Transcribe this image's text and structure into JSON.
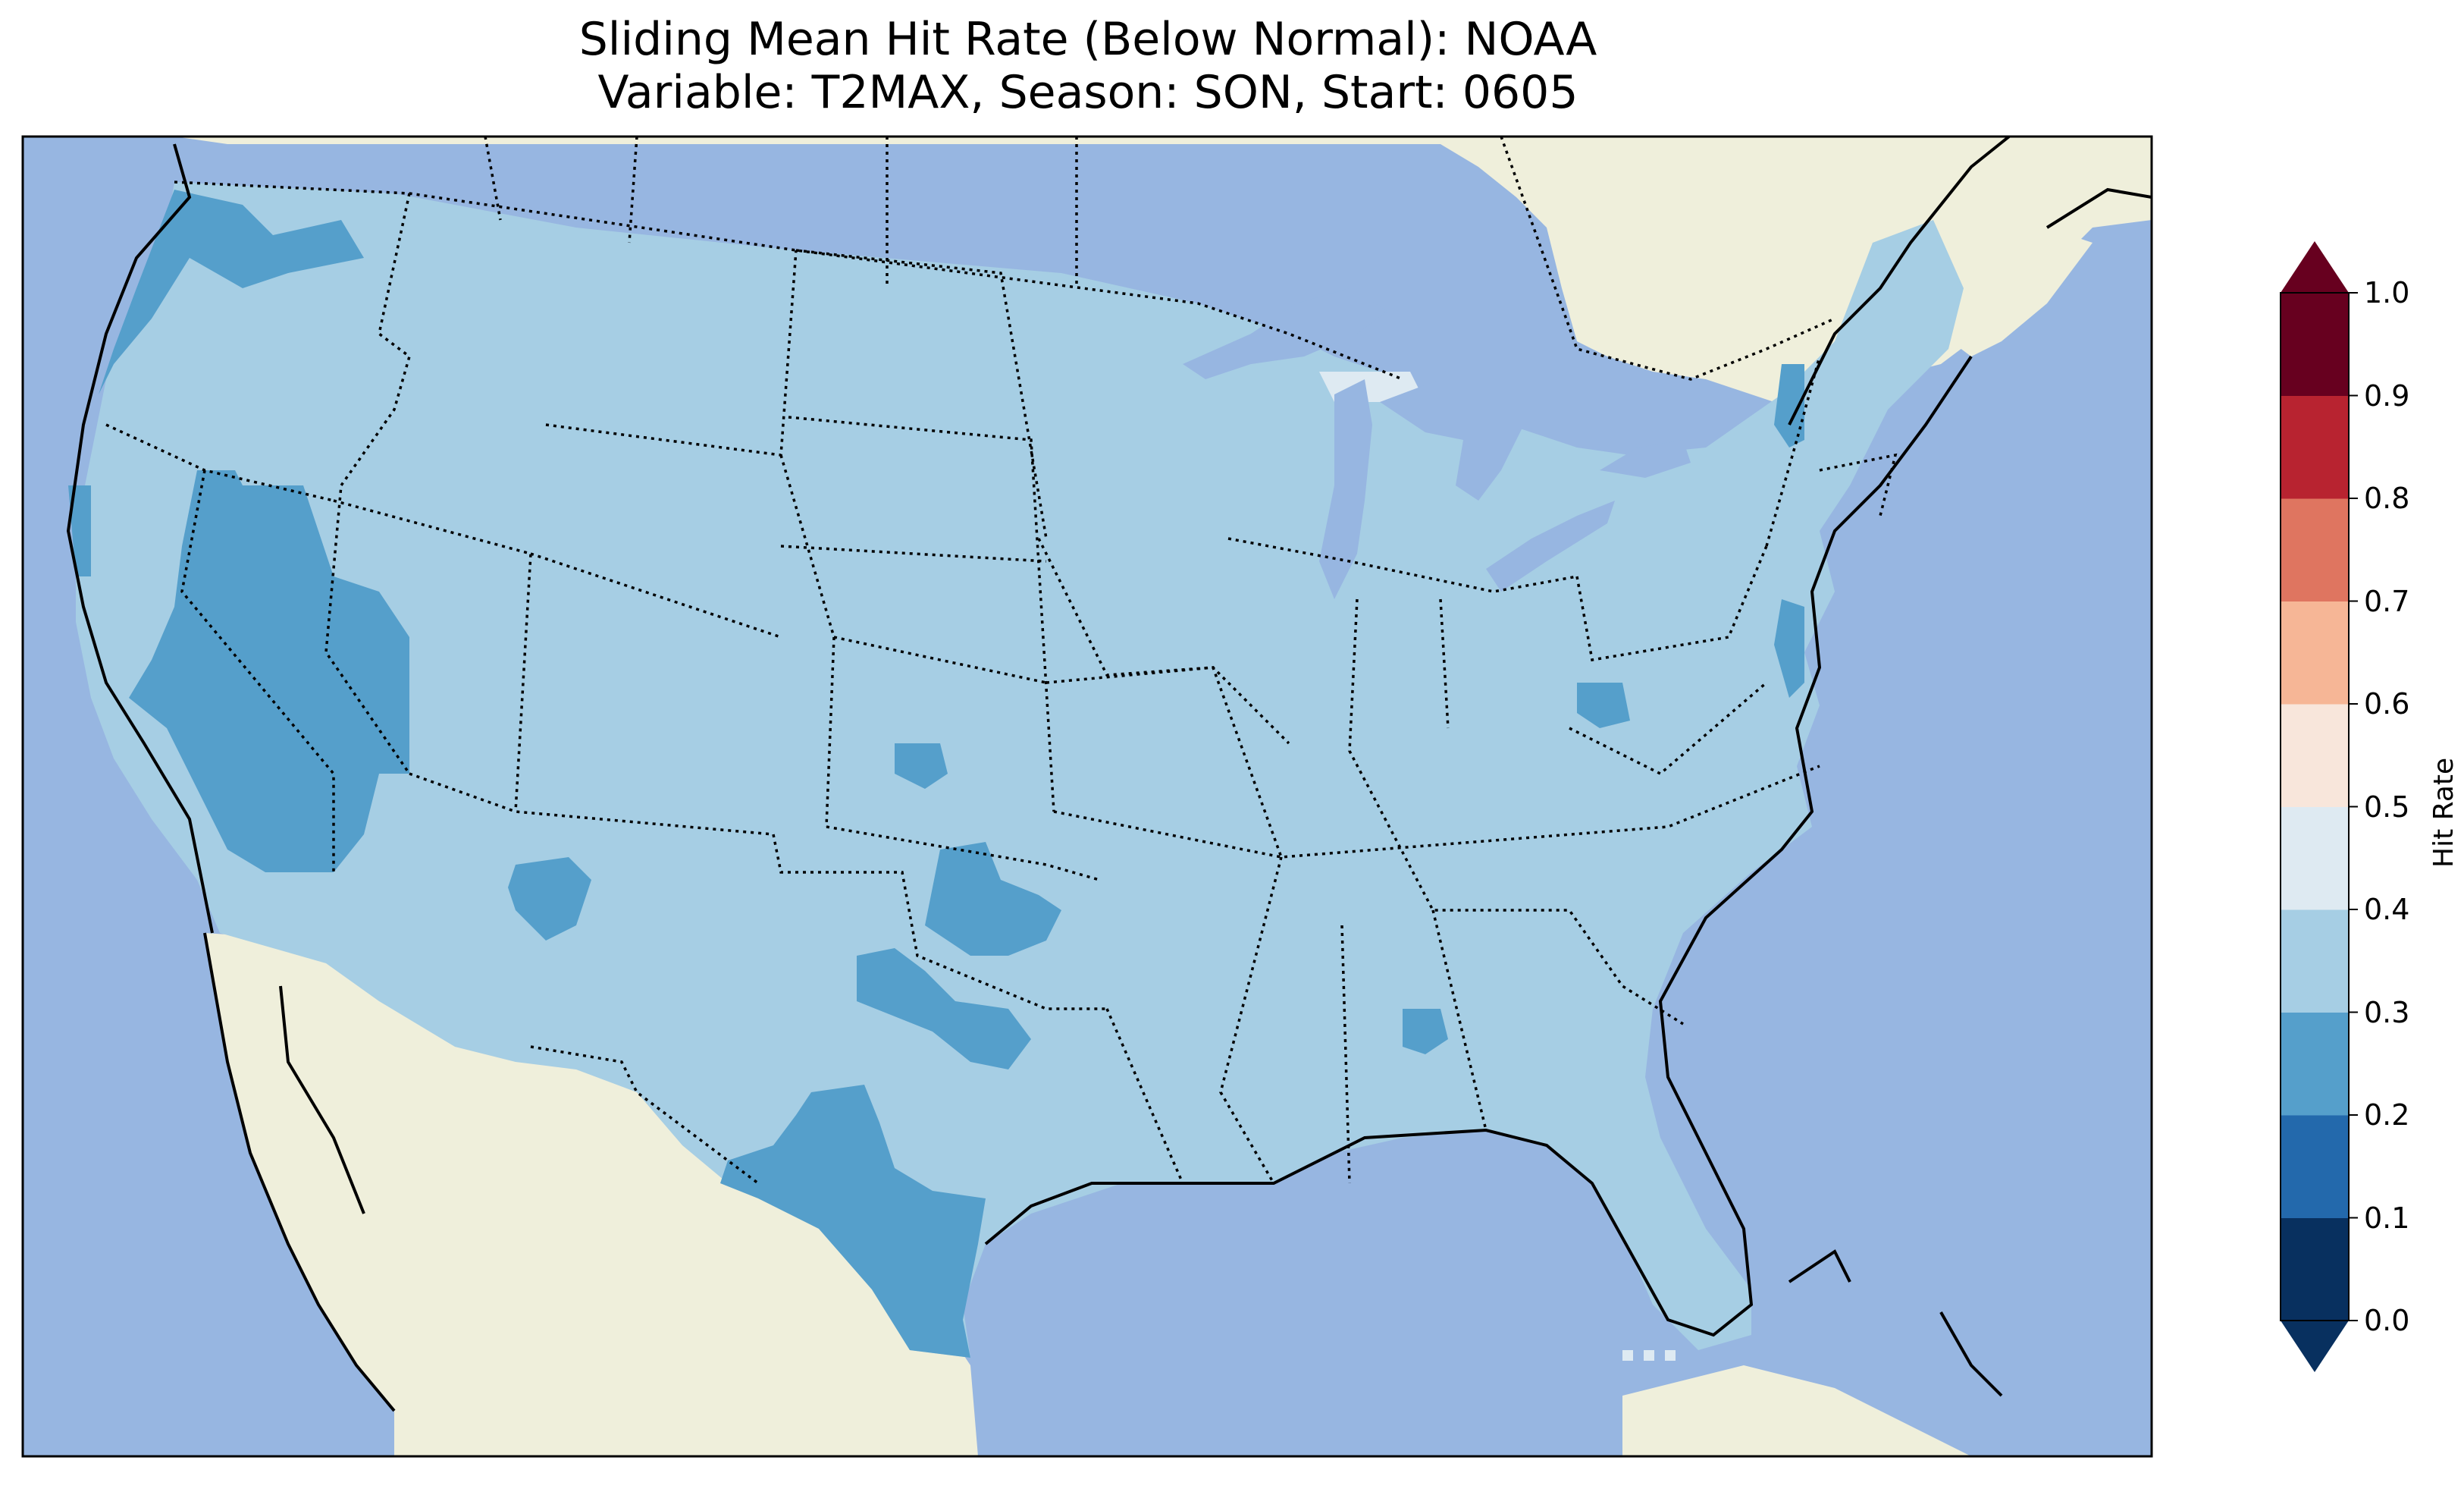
{
  "title": {
    "line1": "Sliding Mean Hit Rate (Below Normal): NOAA",
    "line2": "Variable: T2MAX, Season: SON, Start: 0605"
  },
  "map": {
    "region": "Contiguous United States",
    "ocean_color": "#97b6e1",
    "land_color": "#efefdb",
    "dominant_value_range": [
      0.3,
      0.4
    ],
    "dominant_color": "#a6cee4",
    "low_value_range": [
      0.2,
      0.3
    ],
    "low_color": "#559fcb",
    "high_value_range": [
      0.4,
      0.5
    ],
    "high_color": "#deeaf2"
  },
  "colorbar": {
    "label": "Hit Rate",
    "ticks": [
      "0.0",
      "0.1",
      "0.2",
      "0.3",
      "0.4",
      "0.5",
      "0.6",
      "0.7",
      "0.8",
      "0.9",
      "1.0"
    ],
    "colors": [
      "#053061",
      "#2166ac",
      "#4393c3",
      "#92c5de",
      "#d1e5f0",
      "#f7f7f7",
      "#fddbc7",
      "#f4a582",
      "#d6604d",
      "#b2182b",
      "#67001f"
    ],
    "bins": [
      "#08305f",
      "#2369ac",
      "#559fcb",
      "#a6cee4",
      "#deeaf2",
      "#f8e6db",
      "#f6b696",
      "#df7560",
      "#b82330",
      "#67001f"
    ],
    "extend": "both"
  }
}
